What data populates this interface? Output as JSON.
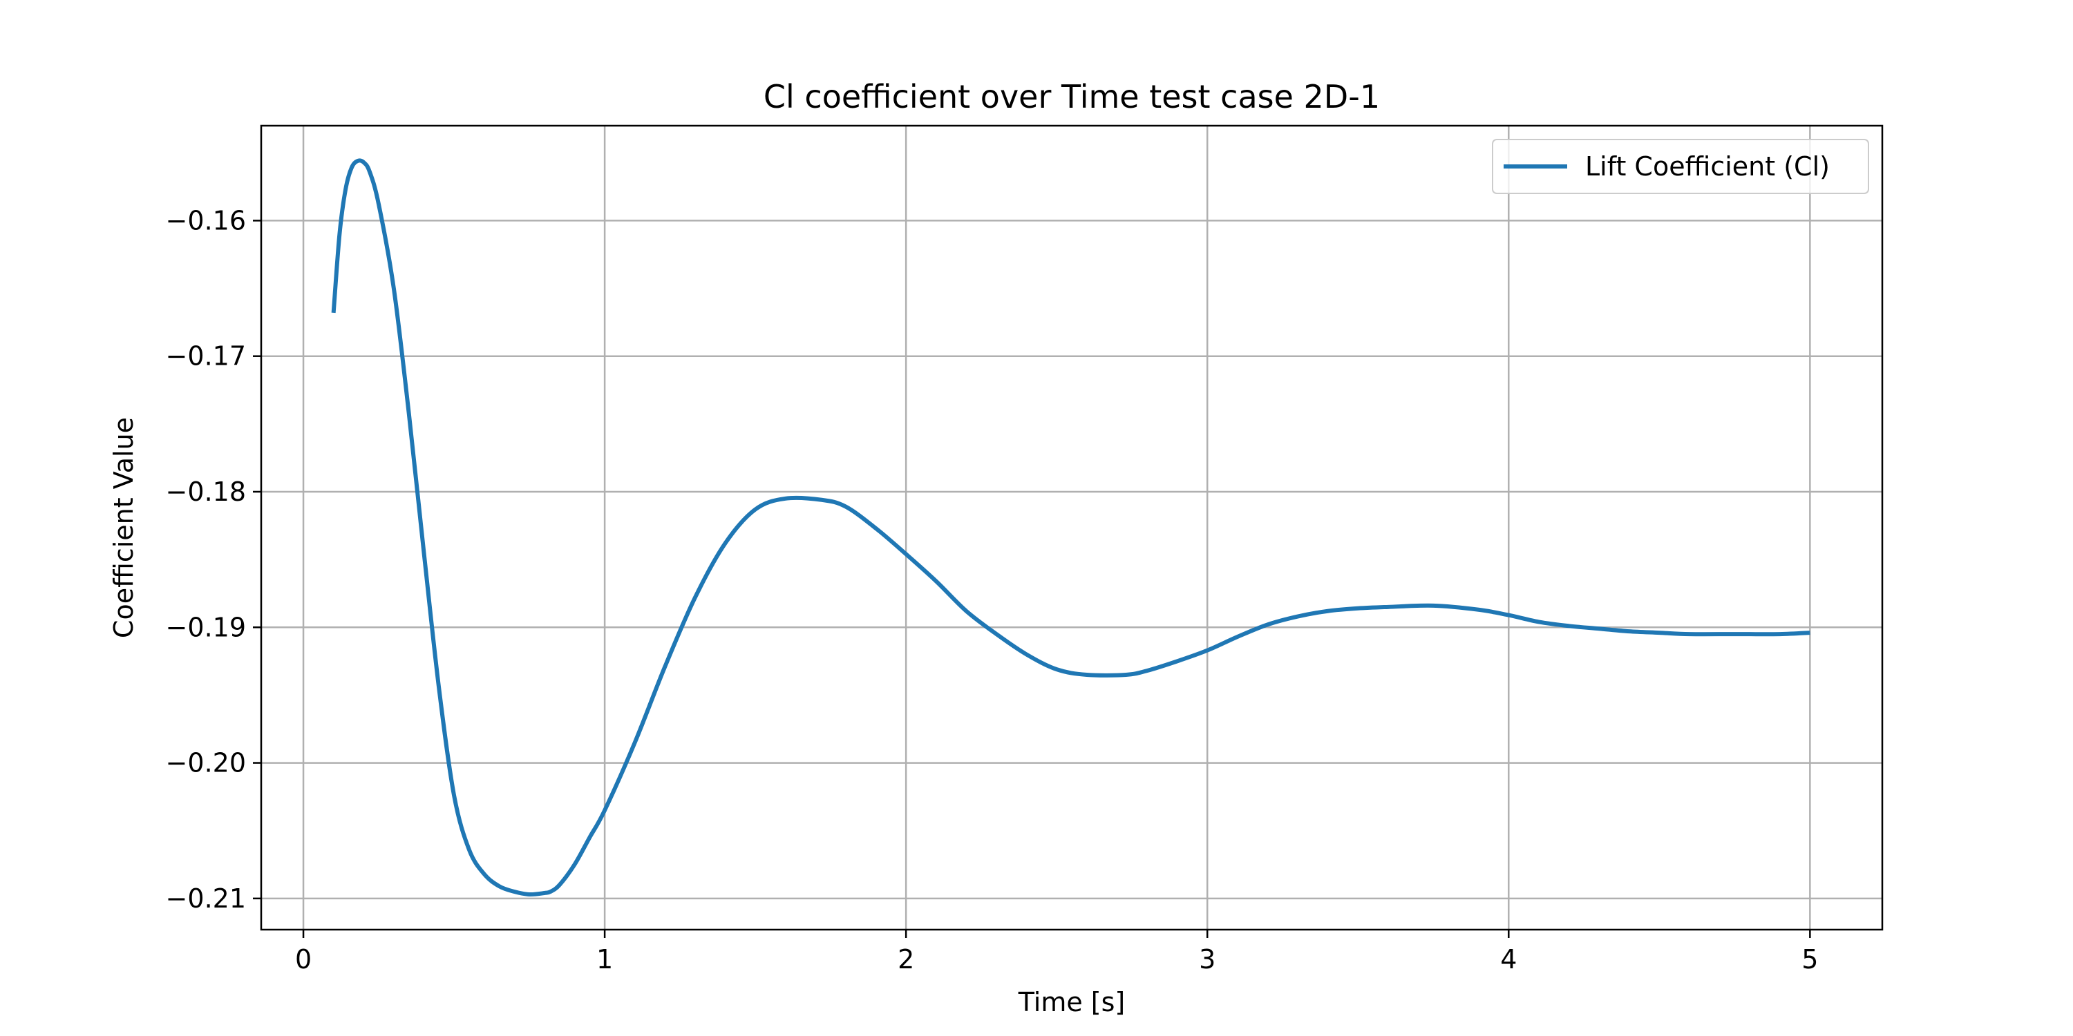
{
  "chart_data": {
    "type": "line",
    "title": "Cl coefficient over Time test case 2D-1",
    "xlabel": "Time [s]",
    "ylabel": "Coefficient Value",
    "xlim": [
      -0.14,
      5.24
    ],
    "ylim": [
      -0.2123,
      -0.153
    ],
    "x_ticks": [
      0,
      1,
      2,
      3,
      4,
      5
    ],
    "x_tick_labels": [
      "0",
      "1",
      "2",
      "3",
      "4",
      "5"
    ],
    "y_ticks": [
      -0.16,
      -0.17,
      -0.18,
      -0.19,
      -0.2,
      -0.21
    ],
    "y_tick_labels": [
      "−0.16",
      "−0.17",
      "−0.18",
      "−0.19",
      "−0.20",
      "−0.21"
    ],
    "grid": true,
    "legend_position": "top-right",
    "series": [
      {
        "name": "Lift Coefficient (Cl)",
        "color": "#1f77b4",
        "x": [
          0.1,
          0.12,
          0.14,
          0.16,
          0.18,
          0.2,
          0.22,
          0.25,
          0.3,
          0.35,
          0.4,
          0.45,
          0.5,
          0.55,
          0.6,
          0.65,
          0.7,
          0.75,
          0.8,
          0.82,
          0.85,
          0.9,
          0.95,
          1.0,
          1.1,
          1.2,
          1.3,
          1.4,
          1.5,
          1.6,
          1.72,
          1.8,
          1.9,
          2.0,
          2.1,
          2.2,
          2.3,
          2.4,
          2.5,
          2.6,
          2.73,
          2.8,
          2.9,
          3.0,
          3.1,
          3.2,
          3.3,
          3.4,
          3.5,
          3.6,
          3.75,
          3.9,
          4.0,
          4.1,
          4.2,
          4.3,
          4.4,
          4.5,
          4.6,
          4.75,
          4.9,
          5.0
        ],
        "values": [
          -0.1668,
          -0.161,
          -0.1577,
          -0.1561,
          -0.1556,
          -0.1557,
          -0.1564,
          -0.1588,
          -0.165,
          -0.1742,
          -0.1845,
          -0.1945,
          -0.2024,
          -0.2064,
          -0.2082,
          -0.2091,
          -0.2095,
          -0.2097,
          -0.2096,
          -0.2095,
          -0.209,
          -0.2075,
          -0.2055,
          -0.2035,
          -0.1985,
          -0.1929,
          -0.1878,
          -0.1838,
          -0.1813,
          -0.1805,
          -0.1806,
          -0.1811,
          -0.1827,
          -0.1846,
          -0.1866,
          -0.1888,
          -0.1905,
          -0.192,
          -0.1931,
          -0.1935,
          -0.1935,
          -0.1932,
          -0.1925,
          -0.1917,
          -0.1907,
          -0.1898,
          -0.1892,
          -0.1888,
          -0.1886,
          -0.1885,
          -0.1884,
          -0.1887,
          -0.1891,
          -0.1896,
          -0.1899,
          -0.1901,
          -0.1903,
          -0.1904,
          -0.1905,
          -0.1905,
          -0.1905,
          -0.1904
        ]
      }
    ]
  }
}
